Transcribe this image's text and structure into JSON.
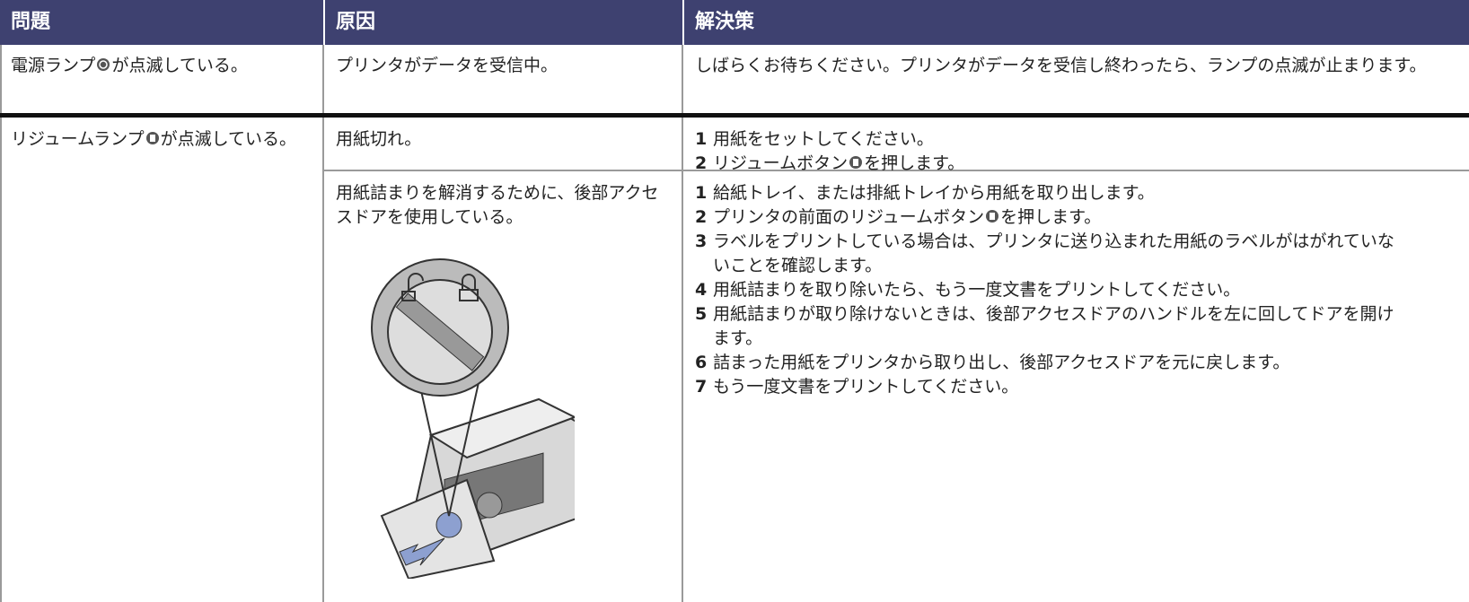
{
  "table": {
    "headers": [
      "問題",
      "原因",
      "解決策"
    ],
    "row1": {
      "problem": [
        "電源ランプ",
        "が点滅している。"
      ],
      "cause": "プリンタがデータを受信中。",
      "solution": "しばらくお待ちください。プリンタがデータを受信し終わったら、ランプの点滅が止まります。"
    },
    "row2": {
      "problem": [
        "リジュームランプ",
        "が点滅している。"
      ],
      "cases": [
        {
          "cause": "用紙切れ。",
          "steps": [
            {
              "number": 1,
              "parts": [
                "用紙をセットしてください。"
              ]
            },
            {
              "number": 2,
              "parts": [
                "リジュームボタン",
                "を押します。"
              ]
            }
          ]
        },
        {
          "cause": "用紙詰まりを解消するために、後部アクセスドアを使用している。",
          "steps": [
            {
              "number": 1,
              "parts": [
                "給紙トレイ、または排紙トレイから用紙を取り出します。"
              ]
            },
            {
              "number": 2,
              "parts": [
                "プリンタの前面のリジュームボタン",
                "を押します。"
              ]
            },
            {
              "number": 3,
              "parts": [
                "ラベルをプリントしている場合は、プリンタに送り込まれた用紙のラベルがはがれていないことを確認します。"
              ]
            },
            {
              "number": 4,
              "parts": [
                "用紙詰まりを取り除いたら、もう一度文書をプリントしてください。"
              ]
            },
            {
              "number": 5,
              "parts": [
                "用紙詰まりが取り除けないときは、後部アクセスドアのハンドルを左に回してドアを開けます。"
              ]
            },
            {
              "number": 6,
              "parts": [
                "詰まった用紙をプリンタから取り出し、後部アクセスドアを元に戻します。"
              ]
            },
            {
              "number": 7,
              "parts": [
                "もう一度文書をプリントしてください。"
              ]
            }
          ]
        }
      ]
    }
  }
}
